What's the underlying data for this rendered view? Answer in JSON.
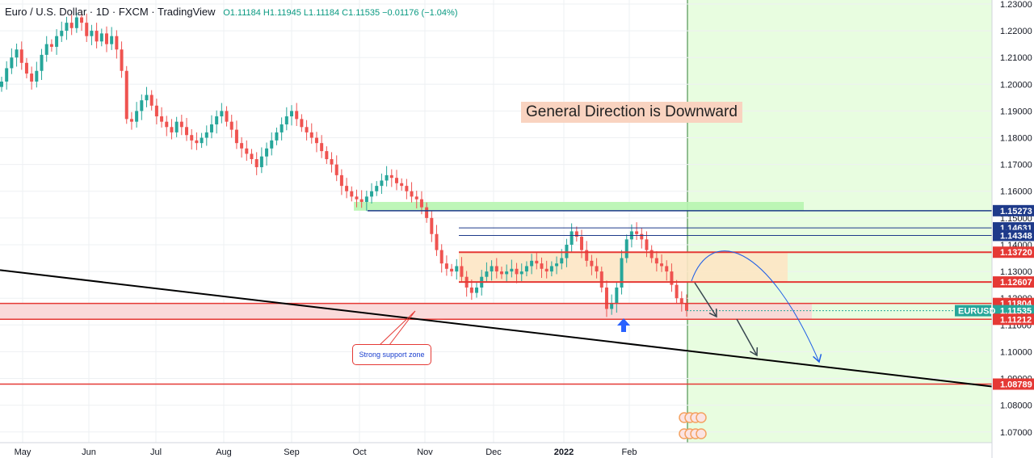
{
  "header": {
    "symbol_title": "Euro / U.S. Dollar · 1D · FXCM · TradingView",
    "ohlc_text": "O1.11184 H1.11945 L1.11184 C1.11535 −0.01176 (−1.04%)"
  },
  "annotations": {
    "headline": "General Direction is Downward",
    "support_callout": "Strong support zone"
  },
  "price_badges": [
    {
      "value": "1.15273",
      "color": "#1e3a8a"
    },
    {
      "value": "1.14631",
      "color": "#1e3a8a"
    },
    {
      "value": "1.14348",
      "color": "#1e3a8a"
    },
    {
      "value": "1.13720",
      "color": "#e53935"
    },
    {
      "value": "1.12607",
      "color": "#e53935"
    },
    {
      "value": "1.11804",
      "color": "#e53935"
    },
    {
      "value": "1.11535",
      "color": "#26a69a",
      "symbol": "EURUSD"
    },
    {
      "value": "1.11212",
      "color": "#e53935"
    },
    {
      "value": "1.08789",
      "color": "#e53935"
    }
  ],
  "colors": {
    "up": "#26a69a",
    "down": "#ef5350",
    "forecast_bg": "#e8fde0",
    "resistance_box": "#fde5c4",
    "support_box": "#f9d6d6",
    "top_box": "#b7f5b0"
  },
  "icons": [
    "event-flag-icon",
    "event-flag-icon"
  ],
  "chart_data": {
    "type": "candlestick",
    "x_axis_labels": [
      "May",
      "Jun",
      "Jul",
      "Aug",
      "Sep",
      "Oct",
      "Nov",
      "Dec",
      "2022",
      "Feb"
    ],
    "y_ticks": [
      "1.23000",
      "1.22000",
      "1.21000",
      "1.20000",
      "1.19000",
      "1.18000",
      "1.17000",
      "1.16000",
      "1.15000",
      "1.14000",
      "1.13000",
      "1.12000",
      "1.11000",
      "1.10000",
      "1.09000",
      "1.08000",
      "1.07000"
    ],
    "ylim": [
      1.066,
      1.2315
    ],
    "grid": true,
    "horizontal_levels": [
      1.15273,
      1.14631,
      1.14348,
      1.1372,
      1.12607,
      1.11804,
      1.11212,
      1.08789
    ],
    "zones": [
      {
        "name": "resistance",
        "from": 1.12607,
        "to": 1.1372
      },
      {
        "name": "support",
        "from": 1.11212,
        "to": 1.11804
      },
      {
        "name": "upper",
        "from": 1.15273,
        "to": 1.156
      }
    ],
    "trendline": {
      "from": [
        0,
        1.1305
      ],
      "to": [
        1,
        1.087
      ]
    },
    "last_close": 1.11535,
    "price_path": [
      1.201,
      1.206,
      1.21,
      1.213,
      1.208,
      1.204,
      1.201,
      1.205,
      1.211,
      1.215,
      1.214,
      1.218,
      1.22,
      1.223,
      1.221,
      1.225,
      1.223,
      1.218,
      1.22,
      1.216,
      1.219,
      1.215,
      1.218,
      1.213,
      1.205,
      1.187,
      1.186,
      1.19,
      1.194,
      1.196,
      1.192,
      1.188,
      1.186,
      1.184,
      1.182,
      1.186,
      1.184,
      1.181,
      1.179,
      1.178,
      1.18,
      1.182,
      1.185,
      1.188,
      1.19,
      1.186,
      1.183,
      1.178,
      1.176,
      1.174,
      1.172,
      1.169,
      1.173,
      1.176,
      1.179,
      1.182,
      1.185,
      1.188,
      1.19,
      1.187,
      1.184,
      1.182,
      1.18,
      1.178,
      1.175,
      1.172,
      1.17,
      1.166,
      1.162,
      1.16,
      1.158,
      1.157,
      1.156,
      1.158,
      1.16,
      1.162,
      1.164,
      1.166,
      1.165,
      1.163,
      1.162,
      1.16,
      1.158,
      1.157,
      1.154,
      1.15,
      1.144,
      1.138,
      1.133,
      1.131,
      1.13,
      1.132,
      1.128,
      1.124,
      1.122,
      1.124,
      1.128,
      1.13,
      1.132,
      1.13,
      1.129,
      1.13,
      1.131,
      1.129,
      1.13,
      1.132,
      1.134,
      1.133,
      1.131,
      1.13,
      1.132,
      1.133,
      1.135,
      1.14,
      1.145,
      1.143,
      1.138,
      1.134,
      1.132,
      1.13,
      1.124,
      1.116,
      1.118,
      1.124,
      1.135,
      1.142,
      1.145,
      1.144,
      1.142,
      1.138,
      1.135,
      1.133,
      1.132,
      1.13,
      1.125,
      1.12,
      1.118,
      1.1153
    ],
    "forecast_paths": [
      "short-term arrow down to 1.1121",
      "second arrow down to 1.1000",
      "curved path up to 1.1370 then down to 1.0970"
    ]
  }
}
